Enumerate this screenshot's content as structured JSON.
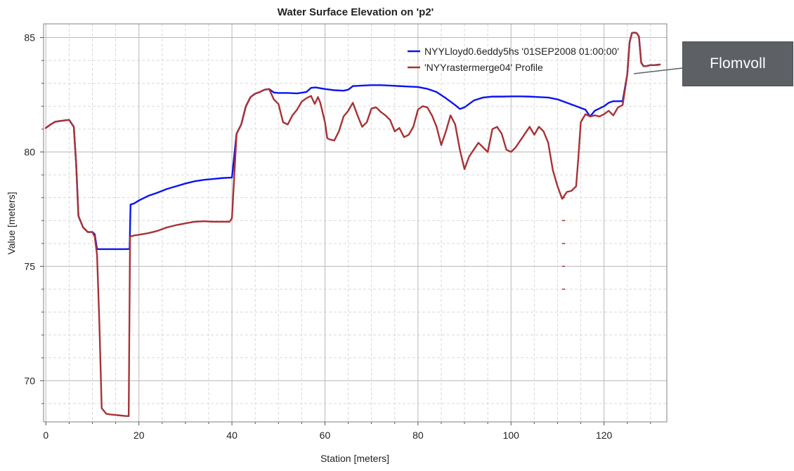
{
  "colors": {
    "plot_border": "#808080",
    "grid_major": "#b8b8b8",
    "grid_minor": "#d9d9d9",
    "text": "#222222",
    "series_blue": "#0b14f2",
    "series_red": "#a83234",
    "callout_bg": "#5d6166",
    "callout_text": "#ffffff"
  },
  "callout": {
    "text": "Flomvoll"
  },
  "chart_data": {
    "type": "line",
    "title": "Water Surface Elevation on 'p2'",
    "xlabel": "Station [meters]",
    "ylabel": "Value [meters]",
    "xlim": [
      -0.5,
      133.5
    ],
    "ylim": [
      68.2,
      85.6
    ],
    "xticks": [
      0,
      20,
      40,
      60,
      80,
      100,
      120
    ],
    "yticks": [
      70,
      75,
      80,
      85
    ],
    "grid": true,
    "legend_position": "top-right",
    "series": [
      {
        "name": "NYYLloyd0.6eddy5hs '01SEP2008 01:00:00'",
        "color": "#0b14f2",
        "points": [
          [
            0,
            81.05
          ],
          [
            1,
            81.2
          ],
          [
            2,
            81.32
          ],
          [
            3,
            81.35
          ],
          [
            4,
            81.38
          ],
          [
            5,
            81.4
          ],
          [
            6,
            81.1
          ],
          [
            6.5,
            79.5
          ],
          [
            7,
            77.2
          ],
          [
            8,
            76.7
          ],
          [
            9,
            76.5
          ],
          [
            10,
            76.5
          ],
          [
            10.5,
            76.4
          ],
          [
            11,
            75.75
          ],
          [
            12,
            75.75
          ],
          [
            13,
            75.75
          ],
          [
            14,
            75.75
          ],
          [
            15,
            75.75
          ],
          [
            16,
            75.75
          ],
          [
            17,
            75.75
          ],
          [
            18,
            75.76
          ],
          [
            18.2,
            77.7
          ],
          [
            19,
            77.75
          ],
          [
            20,
            77.88
          ],
          [
            22,
            78.08
          ],
          [
            24,
            78.22
          ],
          [
            26,
            78.38
          ],
          [
            28,
            78.5
          ],
          [
            30,
            78.62
          ],
          [
            32,
            78.72
          ],
          [
            34,
            78.78
          ],
          [
            36,
            78.82
          ],
          [
            38,
            78.86
          ],
          [
            40,
            78.88
          ],
          [
            41,
            80.8
          ],
          [
            42,
            81.2
          ],
          [
            43,
            82.0
          ],
          [
            44,
            82.4
          ],
          [
            45,
            82.55
          ],
          [
            46,
            82.62
          ],
          [
            47,
            82.72
          ],
          [
            48,
            82.75
          ],
          [
            49,
            82.6
          ],
          [
            50,
            82.58
          ],
          [
            52,
            82.58
          ],
          [
            54,
            82.56
          ],
          [
            56,
            82.62
          ],
          [
            57,
            82.8
          ],
          [
            58,
            82.82
          ],
          [
            60,
            82.75
          ],
          [
            62,
            82.7
          ],
          [
            64,
            82.68
          ],
          [
            65,
            82.72
          ],
          [
            66,
            82.88
          ],
          [
            68,
            82.9
          ],
          [
            70,
            82.92
          ],
          [
            72,
            82.92
          ],
          [
            74,
            82.9
          ],
          [
            76,
            82.88
          ],
          [
            78,
            82.86
          ],
          [
            80,
            82.84
          ],
          [
            82,
            82.76
          ],
          [
            84,
            82.62
          ],
          [
            86,
            82.35
          ],
          [
            88,
            82.05
          ],
          [
            89,
            81.88
          ],
          [
            90,
            81.95
          ],
          [
            92,
            82.25
          ],
          [
            94,
            82.38
          ],
          [
            96,
            82.42
          ],
          [
            98,
            82.42
          ],
          [
            100,
            82.43
          ],
          [
            102,
            82.43
          ],
          [
            104,
            82.42
          ],
          [
            106,
            82.4
          ],
          [
            108,
            82.38
          ],
          [
            110,
            82.3
          ],
          [
            112,
            82.15
          ],
          [
            114,
            82.0
          ],
          [
            116,
            81.85
          ],
          [
            117,
            81.55
          ],
          [
            118,
            81.8
          ],
          [
            120,
            82.0
          ],
          [
            121,
            82.15
          ],
          [
            122,
            82.22
          ],
          [
            124,
            82.22
          ],
          [
            125,
            83.4
          ],
          [
            125.5,
            84.8
          ],
          [
            126,
            85.2
          ],
          [
            126.5,
            85.22
          ],
          [
            127,
            85.2
          ],
          [
            127.5,
            85.05
          ],
          [
            128,
            83.9
          ],
          [
            128.5,
            83.75
          ],
          [
            129,
            83.75
          ],
          [
            130,
            83.8
          ],
          [
            131,
            83.8
          ],
          [
            132,
            83.82
          ]
        ]
      },
      {
        "name": "'NYYrastermerge04' Profile",
        "color": "#a83234",
        "points": [
          [
            0,
            81.05
          ],
          [
            1,
            81.2
          ],
          [
            2,
            81.32
          ],
          [
            3,
            81.35
          ],
          [
            4,
            81.38
          ],
          [
            5,
            81.4
          ],
          [
            6,
            81.1
          ],
          [
            6.5,
            79.5
          ],
          [
            7,
            77.2
          ],
          [
            8,
            76.7
          ],
          [
            9,
            76.5
          ],
          [
            10,
            76.5
          ],
          [
            10.5,
            76.3
          ],
          [
            11,
            75.5
          ],
          [
            11.5,
            72.5
          ],
          [
            12,
            68.8
          ],
          [
            13,
            68.55
          ],
          [
            14,
            68.52
          ],
          [
            15,
            68.5
          ],
          [
            16,
            68.48
          ],
          [
            17,
            68.46
          ],
          [
            17.8,
            68.45
          ],
          [
            18.1,
            76.3
          ],
          [
            19,
            76.35
          ],
          [
            20,
            76.38
          ],
          [
            22,
            76.45
          ],
          [
            24,
            76.55
          ],
          [
            26,
            76.7
          ],
          [
            28,
            76.8
          ],
          [
            30,
            76.88
          ],
          [
            32,
            76.95
          ],
          [
            34,
            76.97
          ],
          [
            36,
            76.95
          ],
          [
            38,
            76.95
          ],
          [
            39.5,
            76.95
          ],
          [
            40,
            77.1
          ],
          [
            41,
            80.8
          ],
          [
            42,
            81.2
          ],
          [
            43,
            82.0
          ],
          [
            44,
            82.4
          ],
          [
            45,
            82.55
          ],
          [
            46,
            82.62
          ],
          [
            47,
            82.72
          ],
          [
            48,
            82.75
          ],
          [
            49,
            82.3
          ],
          [
            50,
            82.1
          ],
          [
            51,
            81.3
          ],
          [
            52,
            81.2
          ],
          [
            53,
            81.6
          ],
          [
            54,
            81.85
          ],
          [
            55,
            82.2
          ],
          [
            56,
            82.35
          ],
          [
            57,
            82.45
          ],
          [
            57.8,
            82.1
          ],
          [
            58.5,
            82.4
          ],
          [
            59,
            82.15
          ],
          [
            60,
            81.3
          ],
          [
            60.5,
            80.6
          ],
          [
            61,
            80.55
          ],
          [
            62,
            80.5
          ],
          [
            63,
            80.9
          ],
          [
            64,
            81.55
          ],
          [
            65,
            81.8
          ],
          [
            66,
            82.15
          ],
          [
            67,
            81.6
          ],
          [
            68,
            81.1
          ],
          [
            69,
            81.3
          ],
          [
            70,
            81.9
          ],
          [
            71,
            81.95
          ],
          [
            72,
            81.75
          ],
          [
            73,
            81.6
          ],
          [
            74,
            81.4
          ],
          [
            75,
            80.9
          ],
          [
            76,
            81.05
          ],
          [
            77,
            80.65
          ],
          [
            78,
            80.75
          ],
          [
            79,
            81.1
          ],
          [
            80,
            81.85
          ],
          [
            81,
            82.0
          ],
          [
            82,
            81.95
          ],
          [
            83,
            81.6
          ],
          [
            84,
            81.1
          ],
          [
            85,
            80.3
          ],
          [
            86,
            80.9
          ],
          [
            87,
            81.6
          ],
          [
            88,
            81.2
          ],
          [
            89,
            80.1
          ],
          [
            90,
            79.25
          ],
          [
            91,
            79.8
          ],
          [
            92,
            80.1
          ],
          [
            93,
            80.4
          ],
          [
            94,
            80.2
          ],
          [
            95,
            80.0
          ],
          [
            96,
            81.0
          ],
          [
            97,
            81.1
          ],
          [
            98,
            80.8
          ],
          [
            99,
            80.1
          ],
          [
            100,
            80.0
          ],
          [
            101,
            80.2
          ],
          [
            102,
            80.5
          ],
          [
            103,
            80.8
          ],
          [
            104,
            81.1
          ],
          [
            105,
            80.75
          ],
          [
            106,
            81.1
          ],
          [
            107,
            80.9
          ],
          [
            108,
            80.4
          ],
          [
            109,
            79.2
          ],
          [
            110,
            78.5
          ],
          [
            111,
            77.95
          ],
          [
            112,
            78.25
          ],
          [
            113,
            78.3
          ],
          [
            114,
            78.5
          ],
          [
            114.5,
            79.8
          ],
          [
            115,
            81.3
          ],
          [
            116,
            81.65
          ],
          [
            117,
            81.55
          ],
          [
            118,
            81.6
          ],
          [
            119,
            81.55
          ],
          [
            120,
            81.65
          ],
          [
            121,
            81.8
          ],
          [
            122,
            81.6
          ],
          [
            123,
            81.95
          ],
          [
            124,
            82.05
          ],
          [
            125,
            83.4
          ],
          [
            125.5,
            84.8
          ],
          [
            126,
            85.2
          ],
          [
            126.5,
            85.22
          ],
          [
            127,
            85.2
          ],
          [
            127.5,
            85.05
          ],
          [
            128,
            83.9
          ],
          [
            128.5,
            83.75
          ],
          [
            129,
            83.75
          ],
          [
            130,
            83.8
          ],
          [
            131,
            83.8
          ],
          [
            132,
            83.82
          ]
        ]
      }
    ],
    "scatter_marks": {
      "color": "#a83234",
      "points": [
        [
          111.3,
          78.0
        ],
        [
          111.3,
          77.0
        ],
        [
          111.3,
          76.0
        ],
        [
          111.3,
          75.0
        ],
        [
          111.3,
          74.0
        ]
      ]
    }
  }
}
